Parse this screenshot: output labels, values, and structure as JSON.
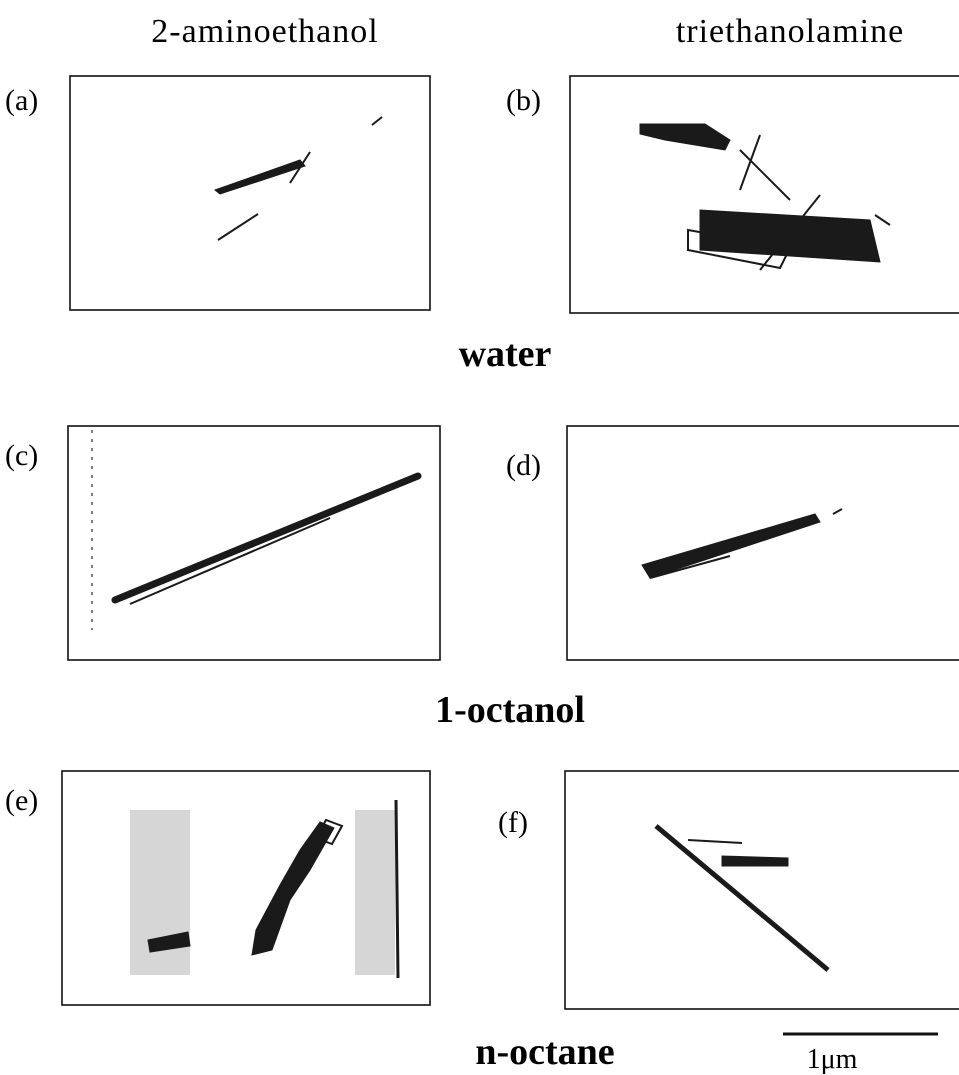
{
  "figure": {
    "columns": [
      "2-aminoethanol",
      "triethanolamine"
    ],
    "panels": [
      "(a)",
      "(b)",
      "(c)",
      "(d)",
      "(e)",
      "(f)"
    ],
    "rows": [
      "water",
      "1-octanol",
      "n-octane"
    ],
    "scale_bar": "1μm"
  }
}
